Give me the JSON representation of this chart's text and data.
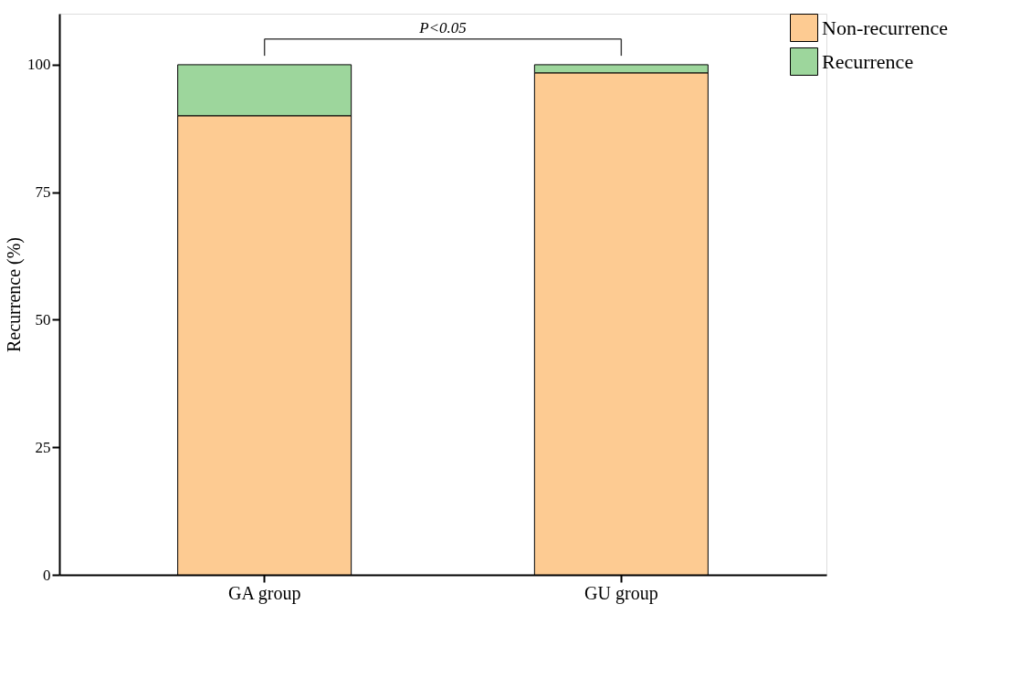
{
  "chart_data": {
    "type": "bar",
    "stacked": true,
    "ylabel": "Recurrence (%)",
    "categories": [
      "GA group",
      "GU group"
    ],
    "series": [
      {
        "name": "Non-recurrence",
        "color": "#fdcb92",
        "values": [
          90,
          98.4
        ]
      },
      {
        "name": "Recurrence",
        "color": "#9dd69c",
        "values": [
          10,
          1.6
        ]
      }
    ],
    "ylim": [
      0,
      110
    ],
    "yticks": [
      0,
      25,
      50,
      75,
      100
    ],
    "grid": false,
    "legend": "top right",
    "annotations": [
      "P<0.05"
    ]
  }
}
